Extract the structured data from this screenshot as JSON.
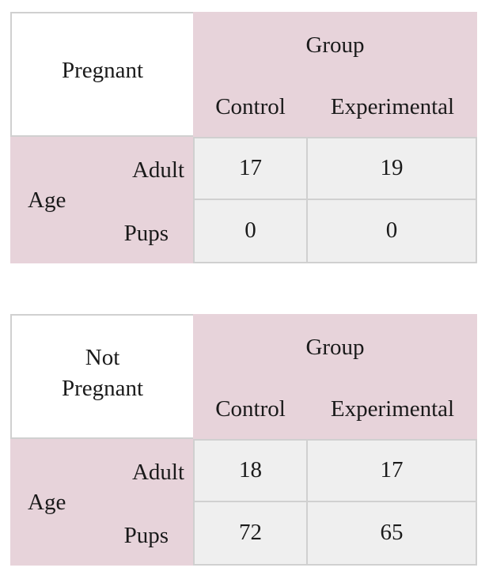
{
  "tables": [
    {
      "corner_label": "Pregnant",
      "group_header": "Group",
      "columns": [
        "Control",
        "Experimental"
      ],
      "row_group_header": "Age",
      "rows": [
        {
          "label": "Adult",
          "values": [
            "17",
            "19"
          ]
        },
        {
          "label": "Pups",
          "values": [
            "0",
            "0"
          ]
        }
      ]
    },
    {
      "corner_label": "Not Pregnant",
      "group_header": "Group",
      "columns": [
        "Control",
        "Experimental"
      ],
      "row_group_header": "Age",
      "rows": [
        {
          "label": "Adult",
          "values": [
            "18",
            "17"
          ]
        },
        {
          "label": "Pups",
          "values": [
            "72",
            "65"
          ]
        }
      ]
    }
  ],
  "colors": {
    "header_pink": "#e7d3da",
    "cell_grey": "#efefef",
    "border": "#d0d0d0"
  }
}
